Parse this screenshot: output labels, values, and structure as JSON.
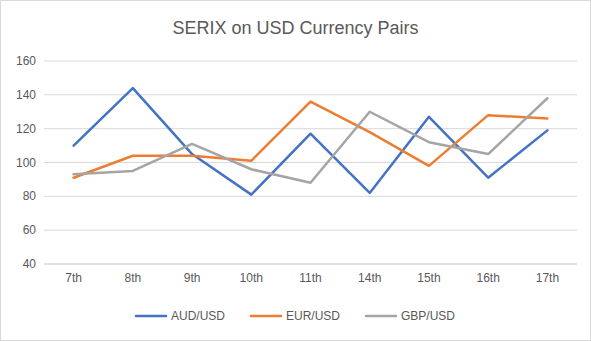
{
  "chart_data": {
    "type": "line",
    "title": "SERIX on USD Currency Pairs",
    "categories": [
      "7th",
      "8th",
      "9th",
      "10th",
      "11th",
      "14th",
      "15th",
      "16th",
      "17th"
    ],
    "series": [
      {
        "name": "AUD/USD",
        "color": "#4472c4",
        "values": [
          110,
          144,
          105,
          81,
          117,
          82,
          127,
          91,
          119
        ]
      },
      {
        "name": "EUR/USD",
        "color": "#ed7d31",
        "values": [
          91,
          104,
          104,
          101,
          136,
          118,
          98,
          128,
          126
        ]
      },
      {
        "name": "GBP/USD",
        "color": "#a5a5a5",
        "values": [
          93,
          95,
          111,
          96,
          88,
          130,
          112,
          105,
          138
        ]
      }
    ],
    "ylim": [
      40,
      160
    ],
    "yticks": [
      40,
      60,
      80,
      100,
      120,
      140,
      160
    ],
    "grid": true,
    "legend": "bottom"
  }
}
